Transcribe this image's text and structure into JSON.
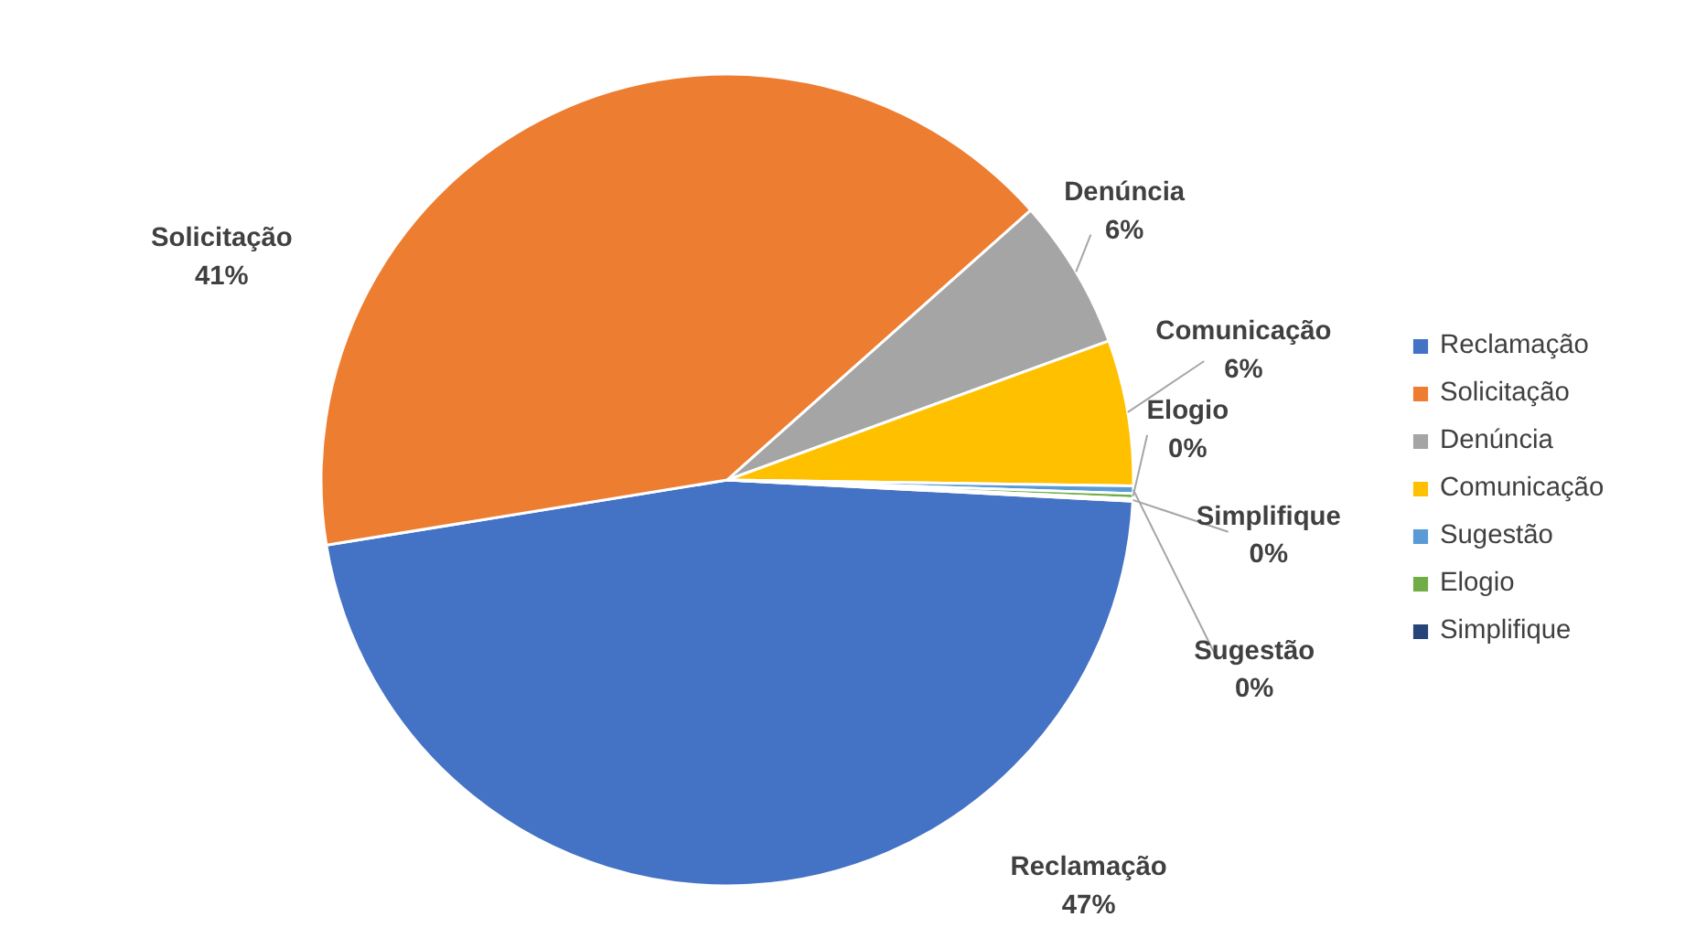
{
  "chart_data": {
    "type": "pie",
    "categories": [
      "Reclamação",
      "Solicitação",
      "Denúncia",
      "Comunicação",
      "Sugestão",
      "Elogio",
      "Simplifique"
    ],
    "values": [
      46.6,
      41.0,
      6.0,
      5.8,
      0.3,
      0.2,
      0.1
    ],
    "value_labels": [
      "47%",
      "41%",
      "6%",
      "6%",
      "0%",
      "0%",
      "0%"
    ],
    "colors": [
      "#4472c4",
      "#ed7d31",
      "#a5a5a5",
      "#ffc000",
      "#5b9bd5",
      "#70ad47",
      "#264478"
    ],
    "legend": "right"
  }
}
